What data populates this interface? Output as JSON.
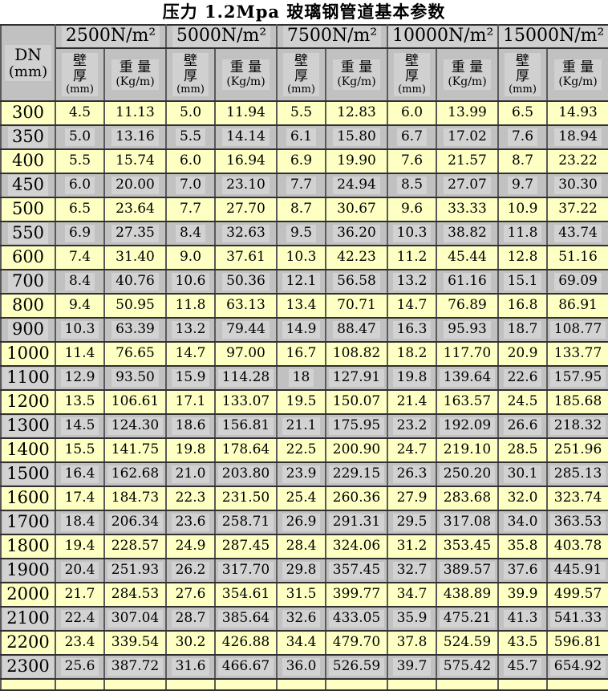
{
  "title": "压力 1.2Mpa  玻璃钢管道基本参数",
  "table": {
    "dn_label": "DN",
    "dn_unit": "(mm)",
    "groups": [
      "2500N/m²",
      "5000N/m²",
      "7500N/m²",
      "10000N/m²",
      "15000N/m²"
    ],
    "wall_label": "壁\n厚",
    "wall_unit": "(mm)",
    "weight_label": "重 量",
    "weight_unit": "(Kg/m)",
    "rows": [
      [
        "300",
        "4.5",
        "11.13",
        "5.0",
        "11.94",
        "5.5",
        "12.83",
        "6.0",
        "13.99",
        "6.5",
        "14.93"
      ],
      [
        "350",
        "5.0",
        "13.16",
        "5.5",
        "14.14",
        "6.1",
        "15.80",
        "6.7",
        "17.02",
        "7.6",
        "18.94"
      ],
      [
        "400",
        "5.5",
        "15.74",
        "6.0",
        "16.94",
        "6.9",
        "19.90",
        "7.6",
        "21.57",
        "8.7",
        "23.22"
      ],
      [
        "450",
        "6.0",
        "20.00",
        "7.0",
        "23.10",
        "7.7",
        "24.94",
        "8.5",
        "27.07",
        "9.7",
        "30.30"
      ],
      [
        "500",
        "6.5",
        "23.64",
        "7.7",
        "27.70",
        "8.7",
        "30.67",
        "9.6",
        "33.33",
        "10.9",
        "37.22"
      ],
      [
        "550",
        "6.9",
        "27.35",
        "8.4",
        "32.63",
        "9.5",
        "36.20",
        "10.3",
        "38.82",
        "11.8",
        "43.74"
      ],
      [
        "600",
        "7.4",
        "31.40",
        "9.0",
        "37.61",
        "10.3",
        "42.23",
        "11.2",
        "45.44",
        "12.8",
        "51.16"
      ],
      [
        "700",
        "8.4",
        "40.76",
        "10.6",
        "50.36",
        "12.1",
        "56.58",
        "13.2",
        "61.16",
        "15.1",
        "69.09"
      ],
      [
        "800",
        "9.4",
        "50.95",
        "11.8",
        "63.13",
        "13.4",
        "70.71",
        "14.7",
        "76.89",
        "16.8",
        "86.91"
      ],
      [
        "900",
        "10.3",
        "63.39",
        "13.2",
        "79.44",
        "14.9",
        "88.47",
        "16.3",
        "95.93",
        "18.7",
        "108.77"
      ],
      [
        "1000",
        "11.4",
        "76.65",
        "14.7",
        "97.00",
        "16.7",
        "108.82",
        "18.2",
        "117.70",
        "20.9",
        "133.77"
      ],
      [
        "1100",
        "12.9",
        "93.50",
        "15.9",
        "114.28",
        "18",
        "127.91",
        "19.8",
        "139.64",
        "22.6",
        "157.95"
      ],
      [
        "1200",
        "13.5",
        "106.61",
        "17.1",
        "133.07",
        "19.5",
        "150.07",
        "21.4",
        "163.57",
        "24.5",
        "185.68"
      ],
      [
        "1300",
        "14.5",
        "124.30",
        "18.6",
        "156.81",
        "21.1",
        "175.95",
        "23.2",
        "192.09",
        "26.6",
        "218.32"
      ],
      [
        "1400",
        "15.5",
        "141.75",
        "19.8",
        "178.64",
        "22.5",
        "200.90",
        "24.7",
        "219.10",
        "28.5",
        "251.96"
      ],
      [
        "1500",
        "16.4",
        "162.68",
        "21.0",
        "203.80",
        "23.9",
        "229.15",
        "26.3",
        "250.20",
        "30.1",
        "285.13"
      ],
      [
        "1600",
        "17.4",
        "184.73",
        "22.3",
        "231.50",
        "25.4",
        "260.36",
        "27.9",
        "283.68",
        "32.0",
        "323.74"
      ],
      [
        "1700",
        "18.4",
        "206.34",
        "23.6",
        "258.71",
        "26.9",
        "291.31",
        "29.5",
        "317.08",
        "34.0",
        "363.53"
      ],
      [
        "1800",
        "19.4",
        "228.57",
        "24.9",
        "287.45",
        "28.4",
        "324.06",
        "31.2",
        "353.45",
        "35.8",
        "403.78"
      ],
      [
        "1900",
        "20.4",
        "251.93",
        "26.2",
        "317.70",
        "29.8",
        "357.45",
        "32.7",
        "389.57",
        "37.6",
        "445.91"
      ],
      [
        "2000",
        "21.7",
        "284.53",
        "27.6",
        "354.61",
        "31.5",
        "399.77",
        "34.7",
        "438.89",
        "39.9",
        "499.57"
      ],
      [
        "2100",
        "22.4",
        "307.04",
        "28.7",
        "385.64",
        "32.6",
        "433.05",
        "35.9",
        "475.21",
        "41.3",
        "541.33"
      ],
      [
        "2200",
        "23.4",
        "339.54",
        "30.2",
        "426.88",
        "34.4",
        "479.70",
        "37.8",
        "524.59",
        "43.5",
        "596.81"
      ],
      [
        "2300",
        "25.6",
        "387.72",
        "31.6",
        "466.67",
        "36.0",
        "526.59",
        "39.7",
        "575.42",
        "45.7",
        "654.92"
      ]
    ]
  }
}
